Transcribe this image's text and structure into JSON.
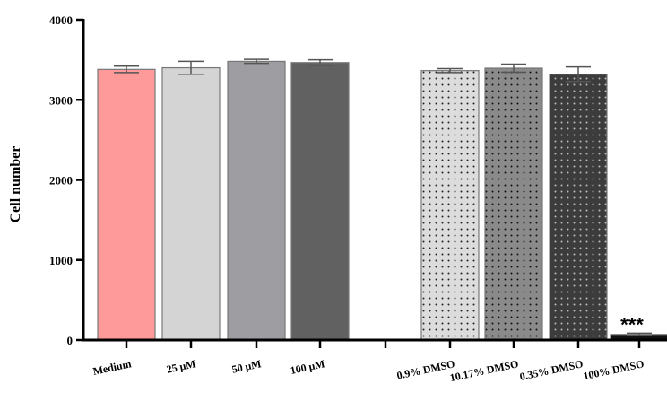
{
  "chart_data": {
    "type": "bar",
    "ylabel": "Cell number",
    "xlabel": "",
    "ylim": [
      0,
      4000
    ],
    "yticks": [
      0,
      1000,
      2000,
      3000,
      4000
    ],
    "categories": [
      "Medium",
      "25 μM",
      "50 μM",
      "100 μM",
      "0.9% DMSO",
      "10.17% DMSO",
      "0.35% DMSO",
      "100% DMSO"
    ],
    "values": [
      3380,
      3400,
      3480,
      3465,
      3365,
      3395,
      3320,
      70
    ],
    "errors": [
      40,
      80,
      25,
      35,
      25,
      50,
      90,
      15
    ],
    "colors": [
      "#ff9a9a",
      "#d4d4d4",
      "#9e9ea2",
      "#616161",
      "#dcdcdc",
      "#8a8a8a",
      "#3c3c3c",
      "#111111"
    ],
    "patterns": [
      "none",
      "none",
      "none",
      "none",
      "dots",
      "dots",
      "dots",
      "none"
    ],
    "annotations": [
      {
        "category": "100% DMSO",
        "text": "***"
      }
    ],
    "grid": false,
    "legend": "none"
  }
}
